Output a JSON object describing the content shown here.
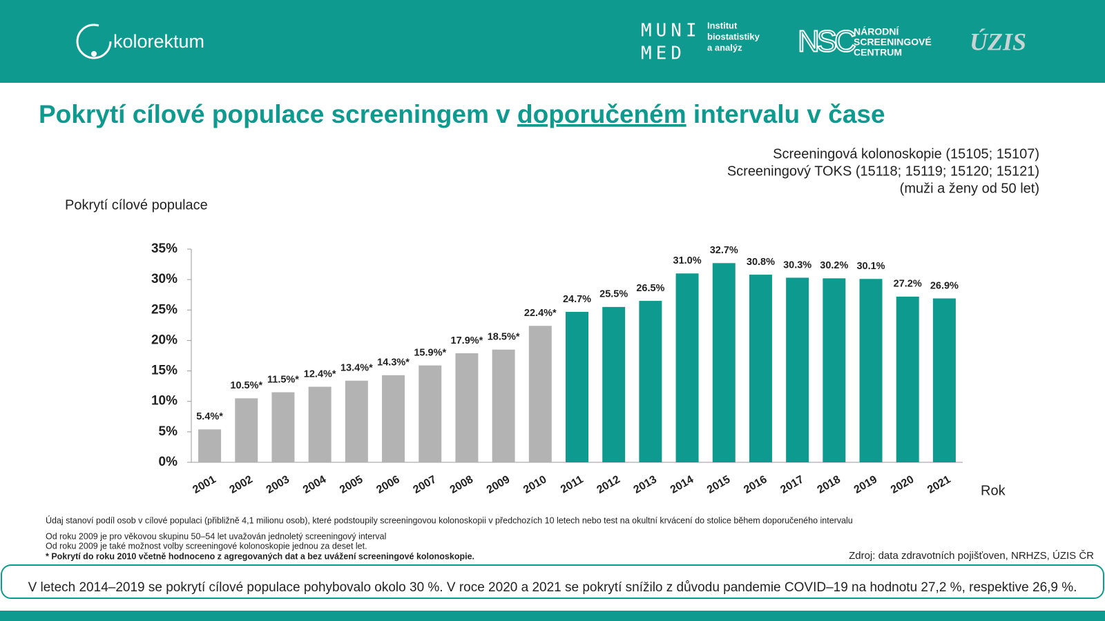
{
  "header": {
    "brand": "kolorektum",
    "muni": "MUNI",
    "med": "MED",
    "institute": [
      "Institut",
      "biostatistiky",
      "a analýz"
    ],
    "nsc": "NSC",
    "nsc_name": [
      "NÁRODNÍ",
      "SCREENINGOVÉ",
      "CENTRUM"
    ],
    "uzis": "ÚZIS"
  },
  "chart_data": {
    "type": "bar",
    "title": [
      "Pokrytí cílové populace screeningem v ",
      "doporučeném",
      " intervalu v čase"
    ],
    "subtitle": [
      "Screeningová kolonoskopie (15105; 15107)",
      "Screeningový TOKS (15118; 15119; 15120; 15121)",
      "(muži a ženy od 50 let)"
    ],
    "ylabel": "Pokrytí cílové populace",
    "xlabel": "Rok",
    "categories": [
      "2001",
      "2002",
      "2003",
      "2004",
      "2005",
      "2006",
      "2007",
      "2008",
      "2009",
      "2010",
      "2011",
      "2012",
      "2013",
      "2014",
      "2015",
      "2016",
      "2017",
      "2018",
      "2019",
      "2020",
      "2021"
    ],
    "values": [
      5.4,
      10.5,
      11.5,
      12.4,
      13.4,
      14.3,
      15.9,
      17.9,
      18.5,
      22.4,
      24.7,
      25.5,
      26.5,
      31.0,
      32.7,
      30.8,
      30.3,
      30.2,
      30.1,
      27.2,
      26.9
    ],
    "value_labels": [
      "5.4%*",
      "10.5%*",
      "11.5%*",
      "12.4%*",
      "13.4%*",
      "14.3%*",
      "15.9%*",
      "17.9%*",
      "18.5%*",
      "22.4%*",
      "24.7%",
      "25.5%",
      "26.5%",
      "31.0%",
      "32.7%",
      "30.8%",
      "30.3%",
      "30.2%",
      "30.1%",
      "27.2%",
      "26.9%"
    ],
    "colors": [
      "#b3b3b3",
      "#b3b3b3",
      "#b3b3b3",
      "#b3b3b3",
      "#b3b3b3",
      "#b3b3b3",
      "#b3b3b3",
      "#b3b3b3",
      "#b3b3b3",
      "#b3b3b3",
      "#0e9a8f",
      "#0e9a8f",
      "#0e9a8f",
      "#0e9a8f",
      "#0e9a8f",
      "#0e9a8f",
      "#0e9a8f",
      "#0e9a8f",
      "#0e9a8f",
      "#0e9a8f",
      "#0e9a8f"
    ],
    "ylim": [
      0,
      35
    ],
    "yticks": [
      {
        "value": 0,
        "label": "0%"
      },
      {
        "value": 5,
        "label": "5%"
      },
      {
        "value": 10,
        "label": "10%"
      },
      {
        "value": 15,
        "label": "15%"
      },
      {
        "value": 20,
        "label": "20%"
      },
      {
        "value": 25,
        "label": "25%"
      },
      {
        "value": 30,
        "label": "30%"
      },
      {
        "value": 35,
        "label": "35%"
      }
    ],
    "grid": false
  },
  "notes": [
    "Údaj stanoví podíl osob v cílové populaci (přibližně 4,1 milionu osob), které podstoupily screeningovou kolonoskopii v předchozích 10 letech nebo test na okultní krvácení do stolice během doporučeného intervalu",
    "Od roku 2009 je pro věkovou skupinu 50–54 let uvažován jednoletý screeningový interval",
    "Od roku 2009 je také možnost volby screeningové kolonoskopie jednou za deset let.",
    "* Pokrytí do roku 2010 včetně hodnoceno z agregovaných dat a bez uvážení screeningové kolonoskopie."
  ],
  "source": "Zdroj: data zdravotních pojišťoven, NRHZS, ÚZIS ČR",
  "summary": "V letech 2014–2019 se pokrytí cílové populace pohybovalo okolo 30 %. V roce 2020 a 2021 se pokrytí snížilo z důvodu pandemie COVID–19 na hodnotu 27,2 %, respektive 26,9 %."
}
